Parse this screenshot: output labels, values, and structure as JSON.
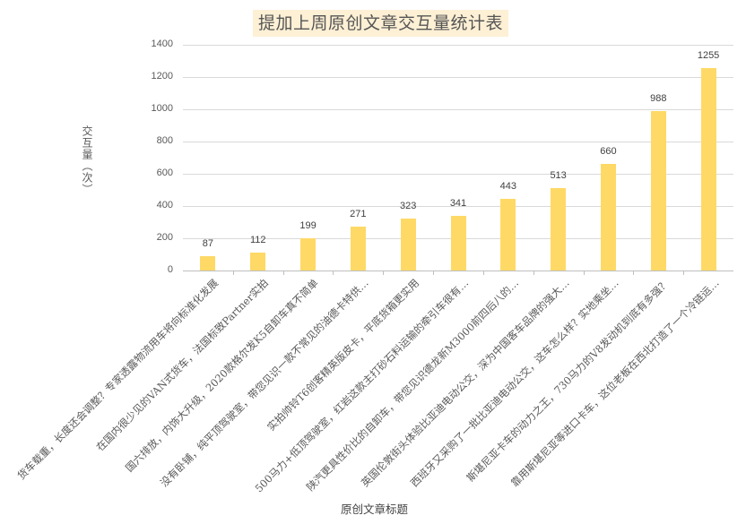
{
  "chart_data": {
    "type": "bar",
    "title": "提加上周原创文章交互量统计表",
    "xlabel": "原创文章标题",
    "ylabel": "交互量（次）",
    "ylim": [
      0,
      1400
    ],
    "yticks": [
      0,
      200,
      400,
      600,
      800,
      1000,
      1200,
      1400
    ],
    "grid": true,
    "legend": null,
    "bar_color": "#ffd966",
    "title_bg": "#fdf0d5",
    "categories": [
      "货车载重，长度还会调整？专家透露物流用车将向标准化发展",
      "在国内很少见的VAN式货车，法国标致Partner实拍",
      "国六排放，内饰大升级，2020款格尔发K5自卸车真不简单",
      "没有卧铺，纯平顶驾驶室，带您见识一款不常见的油德卡特供…",
      "实拍帅铃T6创客精英版皮卡，平底货箱更实用",
      "500马力+低顶驾驶室，红岩这款主打砂石料运输的牵引车很有…",
      "陕汽更具性价比的自卸车，带您见识德龙新M3000前四后八的…",
      "英国伦敦街头体验比亚迪电动公交，深为中国客车品牌的强大…",
      "西班牙又采购了一批比亚迪电动公交，这车怎么样？实地乘坐…",
      "斯堪尼亚卡车的动力之王，730马力的V8发动机到底有多强？",
      "靠用斯堪尼亚等进口卡车，这位老板在西北打造了一个冷链运…"
    ],
    "values": [
      87,
      112,
      199,
      271,
      323,
      341,
      443,
      513,
      660,
      988,
      1255
    ]
  }
}
